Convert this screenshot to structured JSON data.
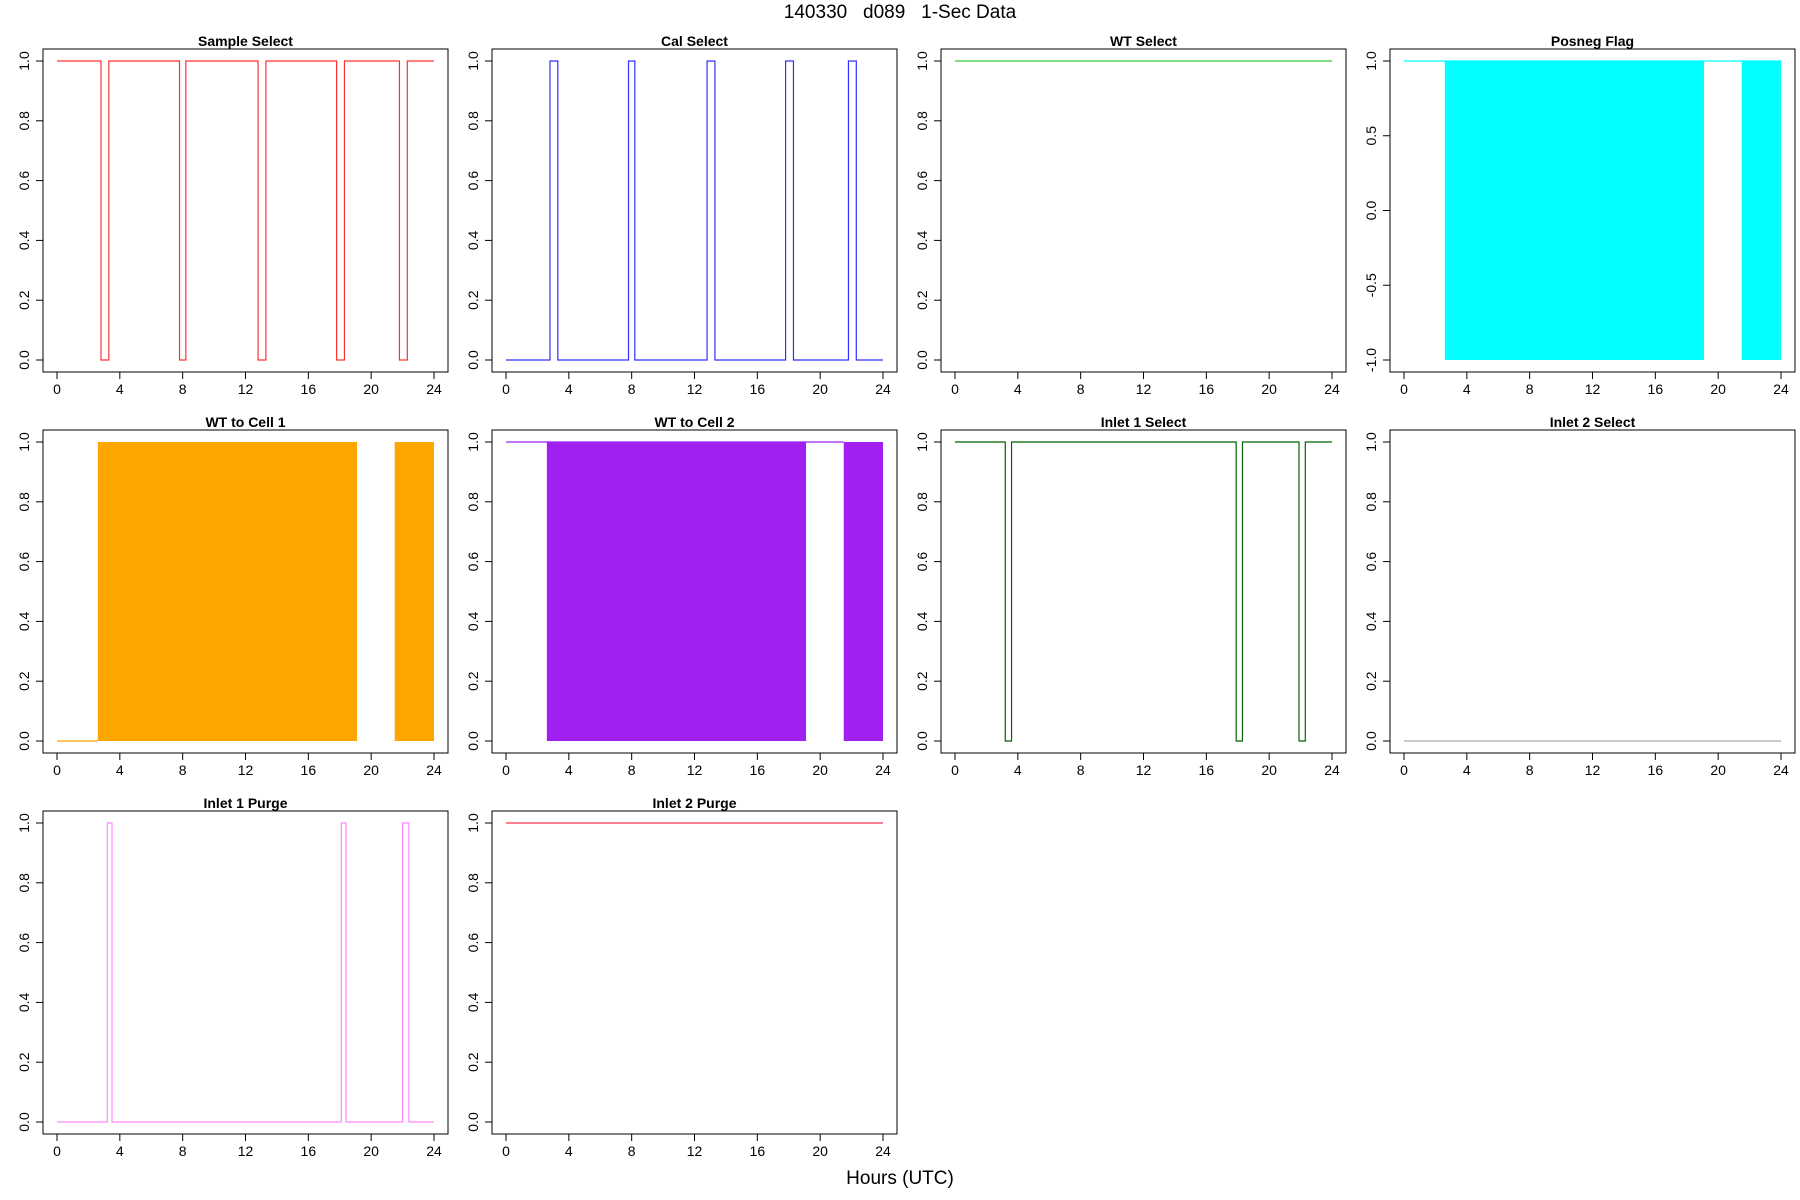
{
  "title": "140330   d089   1-Sec Data",
  "shared_xlabel": "Hours (UTC)",
  "chart_data": [
    {
      "type": "line",
      "title": "Sample Select",
      "color": "#ff3030",
      "fill": false,
      "xlim": [
        0,
        24
      ],
      "ylim": [
        0,
        1
      ],
      "xticks": [
        "0",
        "4",
        "8",
        "12",
        "16",
        "20",
        "24"
      ],
      "yticks": [
        "0.0",
        "0.2",
        "0.4",
        "0.6",
        "0.8",
        "1.0"
      ],
      "x": [
        0,
        2.8,
        2.8,
        3.3,
        3.3,
        7.8,
        7.8,
        8.2,
        8.2,
        12.8,
        12.8,
        13.3,
        13.3,
        17.8,
        17.8,
        18.3,
        18.3,
        21.8,
        21.8,
        22.3,
        22.3,
        24
      ],
      "y": [
        1,
        1,
        0,
        0,
        1,
        1,
        0,
        0,
        1,
        1,
        0,
        0,
        1,
        1,
        0,
        0,
        1,
        1,
        0,
        0,
        1,
        1
      ]
    },
    {
      "type": "line",
      "title": "Cal Select",
      "color": "#3030ff",
      "fill": false,
      "xlim": [
        0,
        24
      ],
      "ylim": [
        0,
        1
      ],
      "xticks": [
        "0",
        "4",
        "8",
        "12",
        "16",
        "20",
        "24"
      ],
      "yticks": [
        "0.0",
        "0.2",
        "0.4",
        "0.6",
        "0.8",
        "1.0"
      ],
      "x": [
        0,
        2.8,
        2.8,
        3.3,
        3.3,
        7.8,
        7.8,
        8.2,
        8.2,
        12.8,
        12.8,
        13.3,
        13.3,
        17.8,
        17.8,
        18.3,
        18.3,
        21.8,
        21.8,
        22.3,
        22.3,
        24
      ],
      "y": [
        0,
        0,
        1,
        1,
        0,
        0,
        1,
        1,
        0,
        0,
        1,
        1,
        0,
        0,
        1,
        1,
        0,
        0,
        1,
        1,
        0,
        0
      ]
    },
    {
      "type": "line",
      "title": "WT Select",
      "color": "#30cc30",
      "fill": false,
      "xlim": [
        0,
        24
      ],
      "ylim": [
        0,
        1
      ],
      "xticks": [
        "0",
        "4",
        "8",
        "12",
        "16",
        "20",
        "24"
      ],
      "yticks": [
        "0.0",
        "0.2",
        "0.4",
        "0.6",
        "0.8",
        "1.0"
      ],
      "x": [
        0,
        24
      ],
      "y": [
        1,
        1
      ]
    },
    {
      "type": "area",
      "title": "Posneg Flag",
      "color": "#00ffff",
      "fill": true,
      "xlim": [
        0,
        24
      ],
      "ylim": [
        -1,
        1
      ],
      "xticks": [
        "0",
        "4",
        "8",
        "12",
        "16",
        "20",
        "24"
      ],
      "yticks": [
        "-1.0",
        "-0.5",
        "0.0",
        "0.5",
        "1.0"
      ],
      "x": [
        0,
        2.6,
        19.1,
        21.5,
        24
      ],
      "y": [
        1,
        1,
        1,
        1,
        1
      ],
      "fill_blocks": [
        [
          2.6,
          19.1
        ],
        [
          21.5,
          24
        ]
      ]
    },
    {
      "type": "area",
      "title": "WT to Cell 1",
      "color": "#ffa500",
      "fill": true,
      "xlim": [
        0,
        24
      ],
      "ylim": [
        0,
        1
      ],
      "xticks": [
        "0",
        "4",
        "8",
        "12",
        "16",
        "20",
        "24"
      ],
      "yticks": [
        "0.0",
        "0.2",
        "0.4",
        "0.6",
        "0.8",
        "1.0"
      ],
      "x": [
        0,
        2.6
      ],
      "y": [
        0,
        0
      ],
      "fill_blocks": [
        [
          2.6,
          19.1
        ],
        [
          21.5,
          24
        ]
      ]
    },
    {
      "type": "area",
      "title": "WT to Cell 2",
      "color": "#a020f0",
      "fill": true,
      "xlim": [
        0,
        24
      ],
      "ylim": [
        0,
        1
      ],
      "xticks": [
        "0",
        "4",
        "8",
        "12",
        "16",
        "20",
        "24"
      ],
      "yticks": [
        "0.0",
        "0.2",
        "0.4",
        "0.6",
        "0.8",
        "1.0"
      ],
      "x": [
        0,
        2.6,
        19.1,
        21.5
      ],
      "y": [
        1,
        1,
        1,
        1
      ],
      "fill_blocks": [
        [
          2.6,
          19.1
        ],
        [
          21.5,
          24
        ]
      ]
    },
    {
      "type": "line",
      "title": "Inlet 1 Select",
      "color": "#006400",
      "fill": false,
      "xlim": [
        0,
        24
      ],
      "ylim": [
        0,
        1
      ],
      "xticks": [
        "0",
        "4",
        "8",
        "12",
        "16",
        "20",
        "24"
      ],
      "yticks": [
        "0.0",
        "0.2",
        "0.4",
        "0.6",
        "0.8",
        "1.0"
      ],
      "x": [
        0,
        3.2,
        3.2,
        3.6,
        3.6,
        17.9,
        17.9,
        18.3,
        18.3,
        21.9,
        21.9,
        22.3,
        22.3,
        24
      ],
      "y": [
        1,
        1,
        0,
        0,
        1,
        1,
        0,
        0,
        1,
        1,
        0,
        0,
        1,
        1
      ]
    },
    {
      "type": "line",
      "title": "Inlet 2 Select",
      "color": "#aaaaaa",
      "fill": false,
      "xlim": [
        0,
        24
      ],
      "ylim": [
        0,
        1
      ],
      "xticks": [
        "0",
        "4",
        "8",
        "12",
        "16",
        "20",
        "24"
      ],
      "yticks": [
        "0.0",
        "0.2",
        "0.4",
        "0.6",
        "0.8",
        "1.0"
      ],
      "x": [
        0,
        24
      ],
      "y": [
        0,
        0
      ]
    },
    {
      "type": "line",
      "title": "Inlet 1 Purge",
      "color": "#ff88ff",
      "fill": false,
      "xlim": [
        0,
        24
      ],
      "ylim": [
        0,
        1
      ],
      "xticks": [
        "0",
        "4",
        "8",
        "12",
        "16",
        "20",
        "24"
      ],
      "yticks": [
        "0.0",
        "0.2",
        "0.4",
        "0.6",
        "0.8",
        "1.0"
      ],
      "x": [
        0,
        3.2,
        3.2,
        3.5,
        3.5,
        18.1,
        18.1,
        18.4,
        18.4,
        22.0,
        22.0,
        22.4,
        22.4,
        24
      ],
      "y": [
        0,
        0,
        1,
        1,
        0,
        0,
        1,
        1,
        0,
        0,
        1,
        1,
        0,
        0
      ]
    },
    {
      "type": "line",
      "title": "Inlet 2 Purge",
      "color": "#ff3050",
      "fill": false,
      "xlim": [
        0,
        24
      ],
      "ylim": [
        0,
        1
      ],
      "xticks": [
        "0",
        "4",
        "8",
        "12",
        "16",
        "20",
        "24"
      ],
      "yticks": [
        "0.0",
        "0.2",
        "0.4",
        "0.6",
        "0.8",
        "1.0"
      ],
      "x": [
        0,
        24
      ],
      "y": [
        1,
        1
      ]
    }
  ]
}
